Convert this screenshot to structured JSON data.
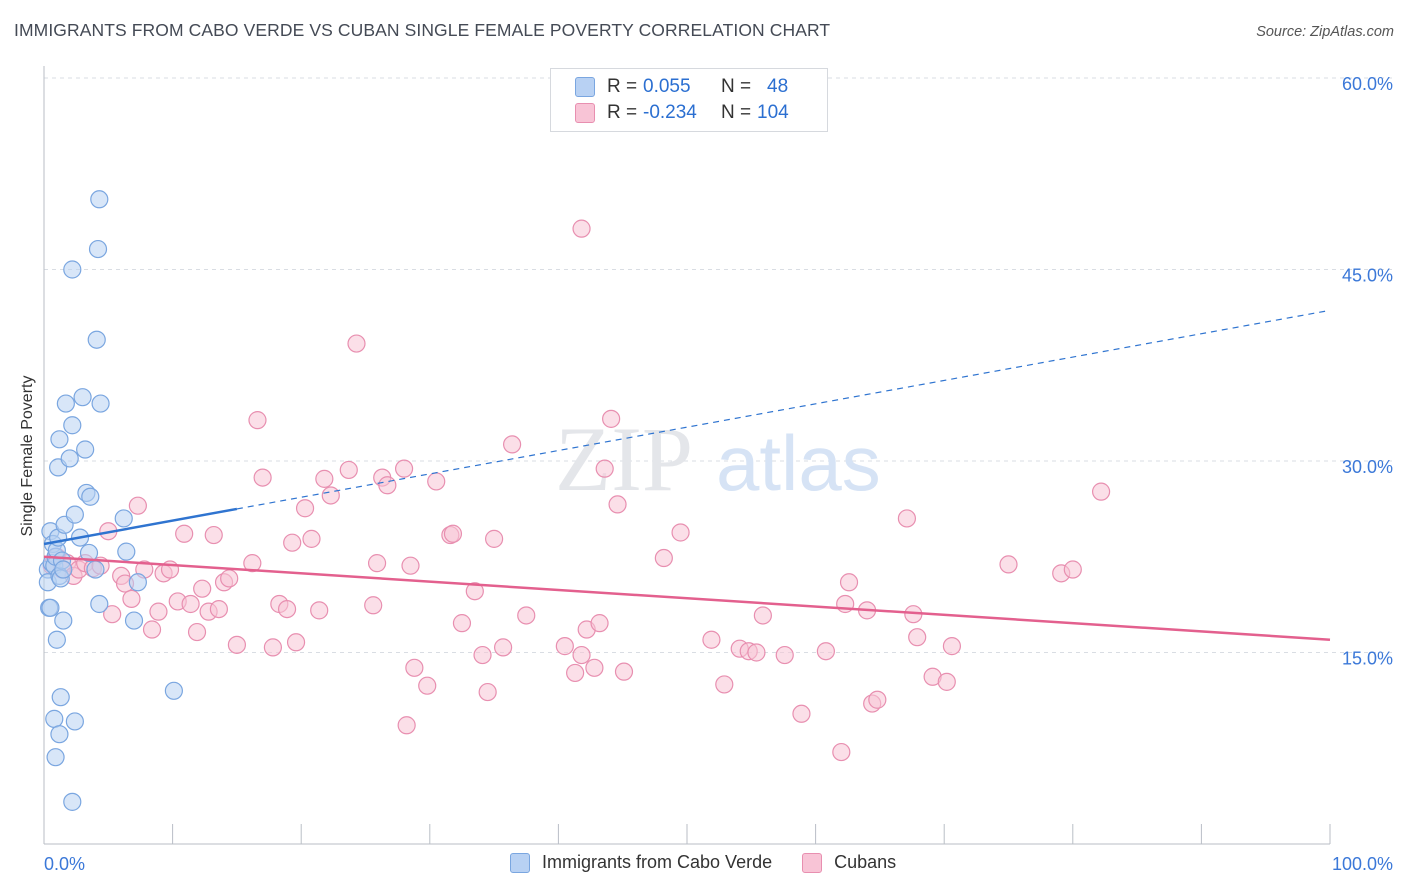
{
  "header": {
    "title": "IMMIGRANTS FROM CABO VERDE VS CUBAN SINGLE FEMALE POVERTY CORRELATION CHART",
    "source": "Source: ZipAtlas.com"
  },
  "watermark": {
    "zip": "ZIP",
    "atlas": "atlas"
  },
  "legend_top": {
    "rows": [
      {
        "r_label": "R =",
        "r_value": "0.055",
        "n_label": "N =",
        "n_value": "48"
      },
      {
        "r_label": "R =",
        "r_value": "-0.234",
        "n_label": "N =",
        "n_value": "104"
      }
    ]
  },
  "legend_bottom": {
    "items": [
      "Immigrants from Cabo Verde",
      "Cubans"
    ]
  },
  "colors": {
    "blue_fill": "#b8d1f3",
    "blue_stroke": "#7aa6e0",
    "blue_line": "#2f74d0",
    "pink_fill": "#f8c4d6",
    "pink_stroke": "#e88fb0",
    "pink_line": "#e3608e",
    "axis_text": "#3b78d8",
    "grid": "#d9dde3"
  },
  "chart_data": {
    "type": "scatter",
    "title": "IMMIGRANTS FROM CABO VERDE VS CUBAN SINGLE FEMALE POVERTY CORRELATION CHART",
    "xlabel": "",
    "ylabel": "Single Female Poverty",
    "xlim": [
      0,
      100
    ],
    "ylim": [
      0,
      60
    ],
    "x_tick_labels": [
      "0.0%",
      "100.0%"
    ],
    "y_ticks": [
      15,
      30,
      45,
      60
    ],
    "y_tick_labels": [
      "15.0%",
      "30.0%",
      "45.0%",
      "60.0%"
    ],
    "grid": true,
    "legend_position": "top-center",
    "series": [
      {
        "name": "Immigrants from Cabo Verde",
        "color": "#b8d1f3",
        "points": [
          [
            0.3,
            21.5
          ],
          [
            0.3,
            20.5
          ],
          [
            0.4,
            18.5
          ],
          [
            0.5,
            24.5
          ],
          [
            0.6,
            22.0
          ],
          [
            0.7,
            23.5
          ],
          [
            0.8,
            21.8
          ],
          [
            0.9,
            22.5
          ],
          [
            1.0,
            23.0
          ],
          [
            1.1,
            24.0
          ],
          [
            1.2,
            21.0
          ],
          [
            1.3,
            20.8
          ],
          [
            1.4,
            22.2
          ],
          [
            1.5,
            21.5
          ],
          [
            1.6,
            25.0
          ],
          [
            0.5,
            18.5
          ],
          [
            1.0,
            16.0
          ],
          [
            1.5,
            17.5
          ],
          [
            0.8,
            9.8
          ],
          [
            1.3,
            11.5
          ],
          [
            1.2,
            8.6
          ],
          [
            0.9,
            6.8
          ],
          [
            2.2,
            3.3
          ],
          [
            2.4,
            9.6
          ],
          [
            1.1,
            29.5
          ],
          [
            1.7,
            34.5
          ],
          [
            2.0,
            30.2
          ],
          [
            2.2,
            32.8
          ],
          [
            3.0,
            35.0
          ],
          [
            1.2,
            31.7
          ],
          [
            2.4,
            25.8
          ],
          [
            3.2,
            30.9
          ],
          [
            3.3,
            27.5
          ],
          [
            3.6,
            27.2
          ],
          [
            2.8,
            24.0
          ],
          [
            3.5,
            22.8
          ],
          [
            4.0,
            21.5
          ],
          [
            4.3,
            18.8
          ],
          [
            6.4,
            22.9
          ],
          [
            7.3,
            20.5
          ],
          [
            7.0,
            17.5
          ],
          [
            6.2,
            25.5
          ],
          [
            4.1,
            39.5
          ],
          [
            4.4,
            34.5
          ],
          [
            4.2,
            46.6
          ],
          [
            4.3,
            50.5
          ],
          [
            2.2,
            45.0
          ],
          [
            10.1,
            12.0
          ]
        ]
      },
      {
        "name": "Cubans",
        "color": "#f8c4d6",
        "points": [
          [
            0.6,
            21.8
          ],
          [
            1.0,
            22.5
          ],
          [
            1.4,
            21.5
          ],
          [
            1.8,
            22.0
          ],
          [
            2.3,
            21.0
          ],
          [
            2.7,
            21.5
          ],
          [
            3.2,
            22.0
          ],
          [
            3.8,
            21.6
          ],
          [
            4.4,
            21.8
          ],
          [
            5.0,
            24.5
          ],
          [
            5.3,
            18.0
          ],
          [
            6.0,
            21.0
          ],
          [
            6.3,
            20.4
          ],
          [
            6.8,
            19.2
          ],
          [
            7.3,
            26.5
          ],
          [
            7.8,
            21.5
          ],
          [
            8.4,
            16.8
          ],
          [
            8.9,
            18.2
          ],
          [
            9.3,
            21.2
          ],
          [
            9.8,
            21.5
          ],
          [
            10.4,
            19.0
          ],
          [
            10.9,
            24.3
          ],
          [
            11.4,
            18.8
          ],
          [
            11.9,
            16.6
          ],
          [
            12.3,
            20.0
          ],
          [
            12.8,
            18.2
          ],
          [
            13.2,
            24.2
          ],
          [
            13.6,
            18.4
          ],
          [
            14.0,
            20.5
          ],
          [
            14.4,
            20.8
          ],
          [
            15.0,
            15.6
          ],
          [
            16.2,
            22.0
          ],
          [
            16.6,
            33.2
          ],
          [
            17.0,
            28.7
          ],
          [
            17.8,
            15.4
          ],
          [
            18.3,
            18.8
          ],
          [
            18.9,
            18.4
          ],
          [
            19.3,
            23.6
          ],
          [
            19.6,
            15.8
          ],
          [
            20.3,
            26.3
          ],
          [
            20.8,
            23.9
          ],
          [
            21.4,
            18.3
          ],
          [
            21.8,
            28.6
          ],
          [
            22.3,
            27.3
          ],
          [
            23.7,
            29.3
          ],
          [
            24.3,
            39.2
          ],
          [
            25.6,
            18.7
          ],
          [
            25.9,
            22.0
          ],
          [
            26.3,
            28.7
          ],
          [
            26.7,
            28.1
          ],
          [
            28.0,
            29.4
          ],
          [
            28.5,
            21.8
          ],
          [
            28.2,
            9.3
          ],
          [
            28.8,
            13.8
          ],
          [
            29.8,
            12.4
          ],
          [
            30.5,
            28.4
          ],
          [
            31.6,
            24.2
          ],
          [
            31.8,
            24.3
          ],
          [
            32.5,
            17.3
          ],
          [
            33.5,
            19.8
          ],
          [
            34.1,
            14.8
          ],
          [
            34.5,
            11.9
          ],
          [
            35.0,
            23.9
          ],
          [
            35.7,
            15.4
          ],
          [
            36.4,
            31.3
          ],
          [
            37.5,
            17.9
          ],
          [
            40.5,
            15.5
          ],
          [
            41.3,
            13.4
          ],
          [
            41.8,
            14.8
          ],
          [
            42.2,
            16.8
          ],
          [
            42.8,
            13.8
          ],
          [
            43.2,
            17.3
          ],
          [
            43.6,
            29.4
          ],
          [
            44.1,
            33.3
          ],
          [
            44.6,
            26.6
          ],
          [
            45.1,
            13.5
          ],
          [
            48.2,
            22.4
          ],
          [
            49.5,
            24.4
          ],
          [
            51.9,
            16.0
          ],
          [
            52.9,
            12.5
          ],
          [
            54.1,
            15.3
          ],
          [
            54.8,
            15.1
          ],
          [
            55.4,
            15.0
          ],
          [
            55.9,
            17.9
          ],
          [
            57.6,
            14.8
          ],
          [
            58.9,
            10.2
          ],
          [
            60.8,
            15.1
          ],
          [
            62.0,
            7.2
          ],
          [
            62.3,
            18.8
          ],
          [
            62.6,
            20.5
          ],
          [
            64.0,
            18.3
          ],
          [
            64.4,
            11.0
          ],
          [
            64.8,
            11.3
          ],
          [
            67.1,
            25.5
          ],
          [
            67.6,
            18.0
          ],
          [
            67.9,
            16.2
          ],
          [
            69.1,
            13.1
          ],
          [
            70.2,
            12.7
          ],
          [
            70.6,
            15.5
          ],
          [
            75.0,
            21.9
          ],
          [
            79.1,
            21.2
          ],
          [
            80.0,
            21.5
          ],
          [
            82.2,
            27.6
          ],
          [
            41.8,
            48.2
          ]
        ]
      }
    ],
    "trend_lines": [
      {
        "series": "Immigrants from Cabo Verde",
        "x_start": 0,
        "y_start": 23.5,
        "x_solid_end": 15,
        "x_end": 100,
        "y_end": 41.8,
        "dashed_extension": true
      },
      {
        "series": "Cubans",
        "x_start": 0,
        "y_start": 22.5,
        "x_end": 100,
        "y_end": 16.0
      }
    ]
  }
}
